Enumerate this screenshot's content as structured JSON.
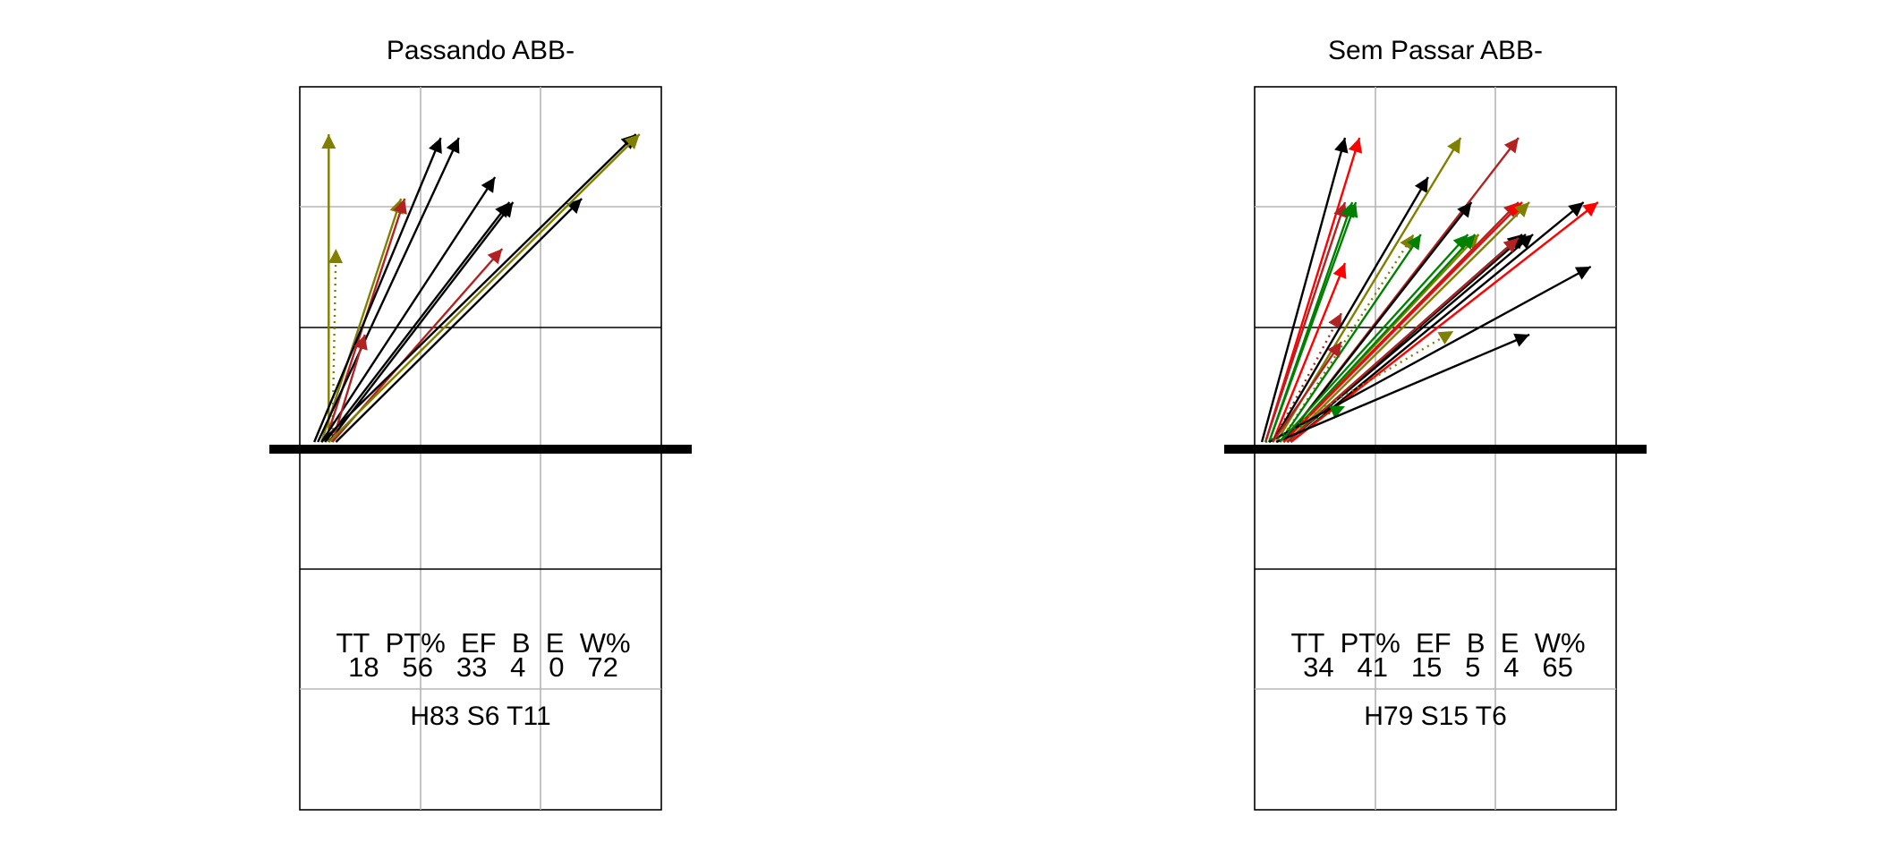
{
  "panels": [
    {
      "title": "Passando ABB-",
      "stats_headers": [
        "TT",
        "PT%",
        "EF",
        "B",
        "E",
        "W%"
      ],
      "stats_values": [
        "18",
        "56",
        "33",
        "4",
        "0",
        "72"
      ],
      "summary": "H83 S6 T11",
      "arrows": [
        {
          "color": "#808000",
          "style": "solid",
          "from": [
            0.08,
            0.09
          ],
          "to": [
            0.08,
            0.95
          ]
        },
        {
          "color": "#808000",
          "style": "dotted",
          "from": [
            0.09,
            0.09
          ],
          "to": [
            0.1,
            0.63
          ]
        },
        {
          "color": "#808000",
          "style": "solid",
          "from": [
            0.06,
            0.09
          ],
          "to": [
            0.28,
            0.77
          ]
        },
        {
          "color": "#b22222",
          "style": "solid",
          "from": [
            0.07,
            0.09
          ],
          "to": [
            0.29,
            0.77
          ]
        },
        {
          "color": "#000000",
          "style": "solid",
          "from": [
            0.04,
            0.09
          ],
          "to": [
            0.39,
            0.94
          ]
        },
        {
          "color": "#000000",
          "style": "solid",
          "from": [
            0.05,
            0.09
          ],
          "to": [
            0.44,
            0.94
          ]
        },
        {
          "color": "#000000",
          "style": "solid",
          "from": [
            0.06,
            0.09
          ],
          "to": [
            0.54,
            0.83
          ]
        },
        {
          "color": "#000000",
          "style": "solid",
          "from": [
            0.07,
            0.09
          ],
          "to": [
            0.58,
            0.76
          ]
        },
        {
          "color": "#000000",
          "style": "solid",
          "from": [
            0.08,
            0.09
          ],
          "to": [
            0.59,
            0.76
          ]
        },
        {
          "color": "#b22222",
          "style": "solid",
          "from": [
            0.09,
            0.09
          ],
          "to": [
            0.56,
            0.63
          ]
        },
        {
          "color": "#b22222",
          "style": "solid",
          "from": [
            0.09,
            0.09
          ],
          "to": [
            0.18,
            0.39
          ]
        },
        {
          "color": "#000000",
          "style": "solid",
          "from": [
            0.1,
            0.09
          ],
          "to": [
            0.78,
            0.77
          ]
        },
        {
          "color": "#000000",
          "style": "solid",
          "from": [
            0.06,
            0.09
          ],
          "to": [
            0.93,
            0.95
          ]
        },
        {
          "color": "#808000",
          "style": "solid",
          "from": [
            0.08,
            0.09
          ],
          "to": [
            0.94,
            0.95
          ]
        }
      ]
    },
    {
      "title": "Sem Passar ABB-",
      "stats_headers": [
        "TT",
        "PT%",
        "EF",
        "B",
        "E",
        "W%"
      ],
      "stats_values": [
        "34",
        "41",
        "15",
        "5",
        "4",
        "65"
      ],
      "summary": "H79 S15 T6",
      "arrows": [
        {
          "color": "#000000",
          "style": "solid",
          "from": [
            0.02,
            0.09
          ],
          "to": [
            0.25,
            0.94
          ]
        },
        {
          "color": "#ff0000",
          "style": "solid",
          "from": [
            0.03,
            0.09
          ],
          "to": [
            0.29,
            0.94
          ]
        },
        {
          "color": "#b22222",
          "style": "solid",
          "from": [
            0.03,
            0.09
          ],
          "to": [
            0.25,
            0.76
          ]
        },
        {
          "color": "#008000",
          "style": "solid",
          "from": [
            0.04,
            0.09
          ],
          "to": [
            0.27,
            0.76
          ]
        },
        {
          "color": "#008000",
          "style": "solid",
          "from": [
            0.04,
            0.09
          ],
          "to": [
            0.28,
            0.76
          ]
        },
        {
          "color": "#ff0000",
          "style": "solid",
          "from": [
            0.05,
            0.09
          ],
          "to": [
            0.25,
            0.59
          ]
        },
        {
          "color": "#b22222",
          "style": "dotted",
          "from": [
            0.05,
            0.09
          ],
          "to": [
            0.24,
            0.45
          ]
        },
        {
          "color": "#000000",
          "style": "solid",
          "from": [
            0.05,
            0.09
          ],
          "to": [
            0.48,
            0.83
          ]
        },
        {
          "color": "#808000",
          "style": "solid",
          "from": [
            0.06,
            0.09
          ],
          "to": [
            0.57,
            0.94
          ]
        },
        {
          "color": "#808000",
          "style": "dotted",
          "from": [
            0.07,
            0.09
          ],
          "to": [
            0.44,
            0.67
          ]
        },
        {
          "color": "#008000",
          "style": "solid",
          "from": [
            0.07,
            0.09
          ],
          "to": [
            0.46,
            0.67
          ]
        },
        {
          "color": "#b22222",
          "style": "solid",
          "from": [
            0.08,
            0.09
          ],
          "to": [
            0.73,
            0.94
          ]
        },
        {
          "color": "#000000",
          "style": "solid",
          "from": [
            0.08,
            0.09
          ],
          "to": [
            0.6,
            0.76
          ]
        },
        {
          "color": "#808000",
          "style": "solid",
          "from": [
            0.08,
            0.09
          ],
          "to": [
            0.62,
            0.67
          ]
        },
        {
          "color": "#008000",
          "style": "solid",
          "from": [
            0.08,
            0.09
          ],
          "to": [
            0.61,
            0.67
          ]
        },
        {
          "color": "#b22222",
          "style": "solid",
          "from": [
            0.08,
            0.09
          ],
          "to": [
            0.73,
            0.76
          ]
        },
        {
          "color": "#ff0000",
          "style": "solid",
          "from": [
            0.08,
            0.09
          ],
          "to": [
            0.74,
            0.76
          ]
        },
        {
          "color": "#808000",
          "style": "solid",
          "from": [
            0.09,
            0.09
          ],
          "to": [
            0.76,
            0.76
          ]
        },
        {
          "color": "#000000",
          "style": "solid",
          "from": [
            0.09,
            0.09
          ],
          "to": [
            0.74,
            0.67
          ]
        },
        {
          "color": "#000000",
          "style": "solid",
          "from": [
            0.09,
            0.09
          ],
          "to": [
            0.75,
            0.67
          ]
        },
        {
          "color": "#000000",
          "style": "solid",
          "from": [
            0.09,
            0.09
          ],
          "to": [
            0.77,
            0.67
          ]
        },
        {
          "color": "#b22222",
          "style": "solid",
          "from": [
            0.09,
            0.09
          ],
          "to": [
            0.73,
            0.66
          ]
        },
        {
          "color": "#000000",
          "style": "solid",
          "from": [
            0.1,
            0.09
          ],
          "to": [
            0.91,
            0.76
          ]
        },
        {
          "color": "#ff0000",
          "style": "solid",
          "from": [
            0.1,
            0.09
          ],
          "to": [
            0.95,
            0.76
          ]
        },
        {
          "color": "#000000",
          "style": "solid",
          "from": [
            0.04,
            0.09
          ],
          "to": [
            0.93,
            0.58
          ]
        },
        {
          "color": "#808000",
          "style": "dotted",
          "from": [
            0.03,
            0.09
          ],
          "to": [
            0.55,
            0.4
          ]
        },
        {
          "color": "#008000",
          "style": "dotted",
          "from": [
            0.03,
            0.09
          ],
          "to": [
            0.25,
            0.19
          ]
        },
        {
          "color": "#000000",
          "style": "solid",
          "from": [
            0.06,
            0.09
          ],
          "to": [
            0.76,
            0.39
          ]
        },
        {
          "color": "#b22222",
          "style": "solid",
          "from": [
            0.05,
            0.09
          ],
          "to": [
            0.24,
            0.37
          ]
        },
        {
          "color": "#008000",
          "style": "solid",
          "from": [
            0.07,
            0.09
          ],
          "to": [
            0.59,
            0.67
          ]
        }
      ]
    }
  ]
}
